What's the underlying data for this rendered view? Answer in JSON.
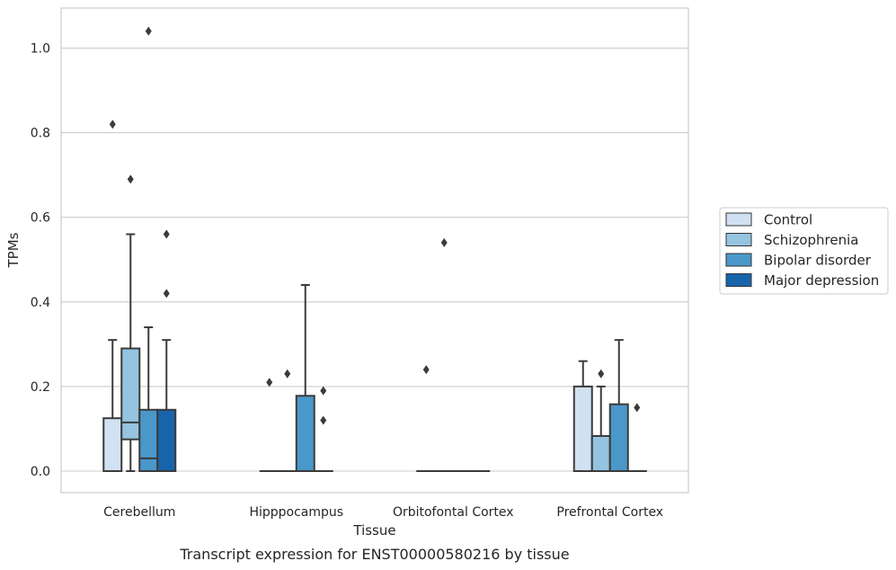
{
  "chart_data": {
    "type": "box",
    "xlabel": "Tissue",
    "ylabel": "TPMs",
    "caption": "Transcript expression for ENST00000580216 by tissue",
    "ylim": [
      -0.05,
      1.09
    ],
    "yticks": [
      "0.0",
      "0.2",
      "0.4",
      "0.6",
      "0.8",
      "1.0"
    ],
    "categories": [
      "Cerebellum",
      "Hipppocampus",
      "Orbitofontal Cortex",
      "Prefrontal Cortex"
    ],
    "grid": "horizontal",
    "legend_position": "right",
    "series": [
      {
        "name": "Control",
        "color": "#d0e1f2",
        "boxes": [
          {
            "q1": 0.0,
            "median": 0.0,
            "q3": 0.125,
            "whisker_low": 0.0,
            "whisker_high": 0.31,
            "outliers": [
              0.82
            ]
          },
          {
            "q1": 0.0,
            "median": 0.0,
            "q3": 0.0,
            "whisker_low": 0.0,
            "whisker_high": 0.0,
            "outliers": [
              0.21
            ]
          },
          {
            "q1": 0.0,
            "median": 0.0,
            "q3": 0.0,
            "whisker_low": 0.0,
            "whisker_high": 0.0,
            "outliers": [
              0.24
            ]
          },
          {
            "q1": 0.0,
            "median": 0.0,
            "q3": 0.2,
            "whisker_low": 0.0,
            "whisker_high": 0.26,
            "outliers": []
          }
        ]
      },
      {
        "name": "Schizophrenia",
        "color": "#94c4df",
        "boxes": [
          {
            "q1": 0.075,
            "median": 0.115,
            "q3": 0.29,
            "whisker_low": 0.0,
            "whisker_high": 0.56,
            "outliers": [
              0.69
            ]
          },
          {
            "q1": 0.0,
            "median": 0.0,
            "q3": 0.0,
            "whisker_low": 0.0,
            "whisker_high": 0.0,
            "outliers": [
              0.23
            ]
          },
          {
            "q1": 0.0,
            "median": 0.0,
            "q3": 0.0,
            "whisker_low": 0.0,
            "whisker_high": 0.0,
            "outliers": [
              0.54
            ]
          },
          {
            "q1": 0.0,
            "median": 0.0,
            "q3": 0.083,
            "whisker_low": 0.0,
            "whisker_high": 0.2,
            "outliers": [
              0.23
            ]
          }
        ]
      },
      {
        "name": "Bipolar disorder",
        "color": "#4a98c9",
        "boxes": [
          {
            "q1": 0.0,
            "median": 0.03,
            "q3": 0.145,
            "whisker_low": 0.0,
            "whisker_high": 0.34,
            "outliers": [
              1.04
            ]
          },
          {
            "q1": 0.0,
            "median": 0.0,
            "q3": 0.178,
            "whisker_low": 0.0,
            "whisker_high": 0.44,
            "outliers": []
          },
          {
            "q1": 0.0,
            "median": 0.0,
            "q3": 0.0,
            "whisker_low": 0.0,
            "whisker_high": 0.0,
            "outliers": []
          },
          {
            "q1": 0.0,
            "median": 0.0,
            "q3": 0.158,
            "whisker_low": 0.0,
            "whisker_high": 0.31,
            "outliers": []
          }
        ]
      },
      {
        "name": "Major depression",
        "color": "#1764ab",
        "boxes": [
          {
            "q1": 0.0,
            "median": 0.0,
            "q3": 0.145,
            "whisker_low": 0.0,
            "whisker_high": 0.31,
            "outliers": [
              0.56,
              0.42
            ]
          },
          {
            "q1": 0.0,
            "median": 0.0,
            "q3": 0.0,
            "whisker_low": 0.0,
            "whisker_high": 0.0,
            "outliers": [
              0.19,
              0.12
            ]
          },
          {
            "q1": 0.0,
            "median": 0.0,
            "q3": 0.0,
            "whisker_low": 0.0,
            "whisker_high": 0.0,
            "outliers": []
          },
          {
            "q1": 0.0,
            "median": 0.0,
            "q3": 0.0,
            "whisker_low": 0.0,
            "whisker_high": 0.0,
            "outliers": [
              0.15
            ]
          }
        ]
      }
    ]
  }
}
